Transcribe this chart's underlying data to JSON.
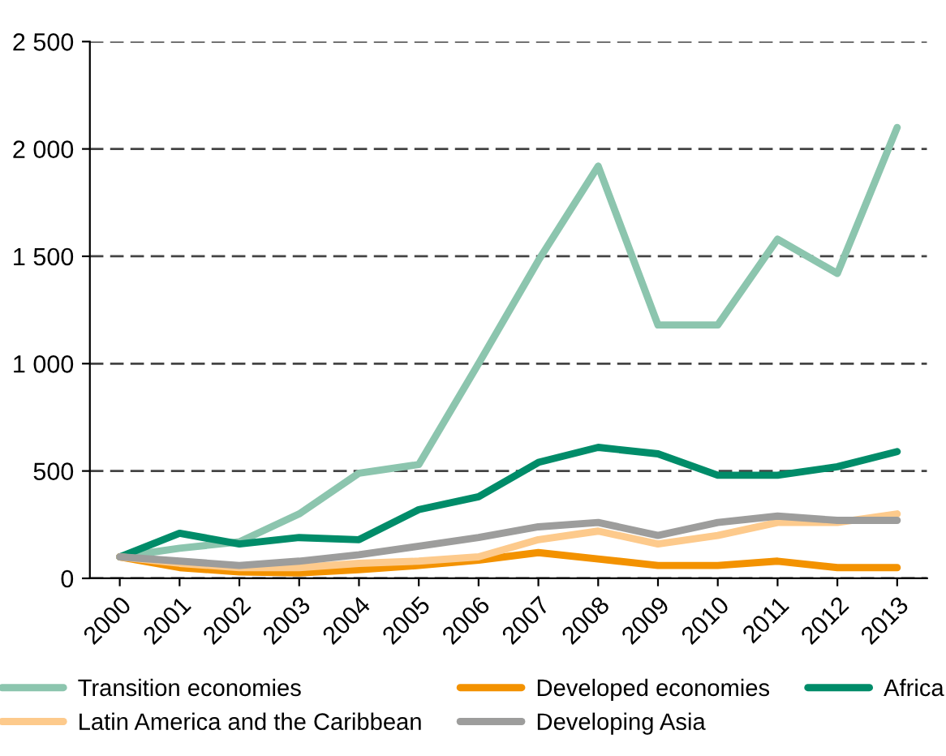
{
  "chart_data": {
    "type": "line",
    "categories": [
      "2000",
      "2001",
      "2002",
      "2003",
      "2004",
      "2005",
      "2006",
      "2007",
      "2008",
      "2009",
      "2010",
      "2011",
      "2012",
      "2013"
    ],
    "series": [
      {
        "name": "Transition economies",
        "color": "#8cc5ae",
        "values": [
          100,
          140,
          170,
          300,
          490,
          530,
          1000,
          1480,
          1920,
          1180,
          1180,
          1580,
          1420,
          2100
        ]
      },
      {
        "name": "Developed economies",
        "color": "#f39200",
        "values": [
          100,
          50,
          30,
          25,
          40,
          60,
          85,
          120,
          90,
          60,
          60,
          80,
          50,
          50
        ]
      },
      {
        "name": "Africa",
        "color": "#008c69",
        "values": [
          100,
          210,
          160,
          190,
          180,
          320,
          380,
          540,
          610,
          580,
          480,
          480,
          520,
          590
        ]
      },
      {
        "name": "Latin America and the Caribbean",
        "color": "#fdca8c",
        "values": [
          100,
          70,
          50,
          50,
          70,
          80,
          100,
          180,
          220,
          160,
          200,
          260,
          260,
          300
        ]
      },
      {
        "name": "Developing Asia",
        "color": "#9d9d9c",
        "values": [
          100,
          80,
          60,
          80,
          110,
          150,
          190,
          240,
          260,
          200,
          260,
          290,
          270,
          270
        ]
      }
    ],
    "ylim": [
      0,
      2500
    ],
    "yticks": [
      0,
      500,
      {
        "value": 1000,
        "label": "1 000"
      },
      {
        "value": 1500,
        "label": "1 500"
      },
      {
        "value": 2000,
        "label": "2 000"
      },
      {
        "value": 2500,
        "label": "2 500"
      }
    ],
    "grid": "y",
    "legend": "bottom",
    "marker": "none",
    "line_style": "solid"
  }
}
